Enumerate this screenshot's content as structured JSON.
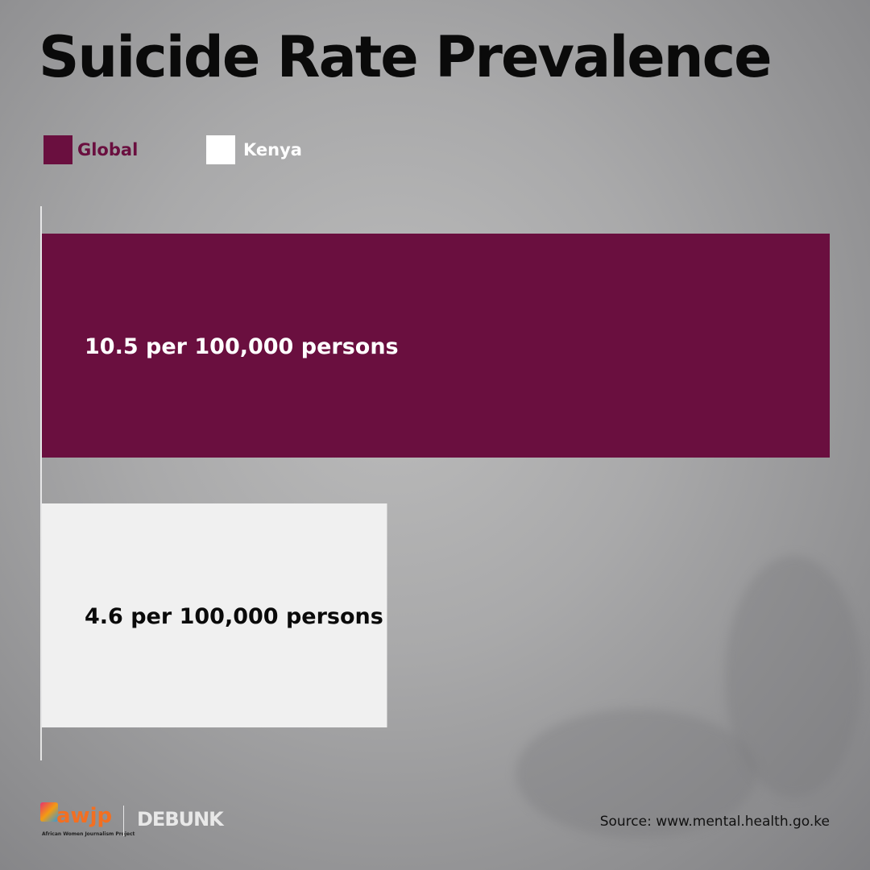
{
  "title": "Suicide Rate Prevalence",
  "legend": [
    {
      "label": "Global",
      "color": "#6a0f3f",
      "label_color": "#6a0f3f"
    },
    {
      "label": "Kenya",
      "color": "#ffffff",
      "label_color": "#ffffff"
    }
  ],
  "chart_data": {
    "type": "bar",
    "orientation": "horizontal",
    "title": "Suicide Rate Prevalence",
    "categories": [
      "Global",
      "Kenya"
    ],
    "values": [
      10.5,
      4.6
    ],
    "unit": "per 100,000 persons",
    "data_labels": [
      "10.5 per 100,000 persons",
      "4.6 per 100,000 persons"
    ],
    "colors": [
      "#6a0f3f",
      "#f0f0f0"
    ],
    "label_colors": [
      "#ffffff",
      "#0a0a0a"
    ],
    "xlim": [
      0,
      10.5
    ],
    "grid": false,
    "legend_position": "top-left"
  },
  "footer": {
    "logo_awjp": "awjp",
    "logo_awjp_caption": "African Women Journalism Project",
    "logo_debunk": "DEBUNK",
    "source": "Source: www.mental.health.go.ke"
  }
}
